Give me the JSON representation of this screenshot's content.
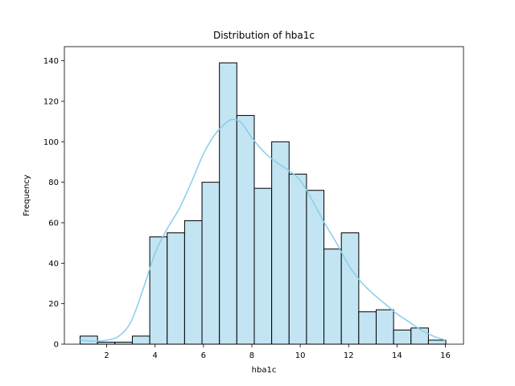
{
  "chart_data": {
    "type": "bar",
    "subtype": "histogram-with-kde",
    "title": "Distribution of hba1c",
    "xlabel": "hba1c",
    "ylabel": "Frequency",
    "xlim": [
      0.25,
      16.75
    ],
    "ylim": [
      0,
      147
    ],
    "xticks": [
      2,
      4,
      6,
      8,
      10,
      12,
      14,
      16
    ],
    "yticks": [
      0,
      20,
      40,
      60,
      80,
      100,
      120,
      140
    ],
    "grid": false,
    "bar_color": "#c3e4f2",
    "edge_color": "#000000",
    "kde_color": "#87ceeb",
    "bins": [
      {
        "x0": 0.9,
        "x1": 1.62,
        "count": 4
      },
      {
        "x0": 1.62,
        "x1": 2.34,
        "count": 1
      },
      {
        "x0": 2.34,
        "x1": 3.06,
        "count": 1
      },
      {
        "x0": 3.06,
        "x1": 3.78,
        "count": 4
      },
      {
        "x0": 3.78,
        "x1": 4.5,
        "count": 53
      },
      {
        "x0": 4.5,
        "x1": 5.22,
        "count": 55
      },
      {
        "x0": 5.22,
        "x1": 5.94,
        "count": 61
      },
      {
        "x0": 5.94,
        "x1": 6.66,
        "count": 80
      },
      {
        "x0": 6.66,
        "x1": 7.38,
        "count": 139
      },
      {
        "x0": 7.38,
        "x1": 8.1,
        "count": 113
      },
      {
        "x0": 8.1,
        "x1": 8.82,
        "count": 77
      },
      {
        "x0": 8.82,
        "x1": 9.54,
        "count": 100
      },
      {
        "x0": 9.54,
        "x1": 10.26,
        "count": 84
      },
      {
        "x0": 10.26,
        "x1": 10.98,
        "count": 76
      },
      {
        "x0": 10.98,
        "x1": 11.7,
        "count": 47
      },
      {
        "x0": 11.7,
        "x1": 12.42,
        "count": 55
      },
      {
        "x0": 12.42,
        "x1": 13.14,
        "count": 16
      },
      {
        "x0": 13.14,
        "x1": 13.86,
        "count": 17
      },
      {
        "x0": 13.86,
        "x1": 14.58,
        "count": 7
      },
      {
        "x0": 14.58,
        "x1": 15.3,
        "count": 8
      },
      {
        "x0": 15.3,
        "x1": 16.02,
        "count": 2
      }
    ],
    "kde": {
      "x": [
        0.9,
        1.5,
        2.0,
        2.5,
        3.0,
        3.5,
        4.0,
        4.5,
        5.0,
        5.5,
        6.0,
        6.5,
        7.0,
        7.3,
        7.6,
        8.0,
        8.5,
        9.0,
        9.5,
        10.0,
        10.5,
        11.0,
        11.5,
        12.0,
        12.5,
        13.0,
        13.5,
        14.0,
        14.5,
        15.0,
        15.5,
        16.0
      ],
      "y": [
        2,
        1.5,
        2,
        4,
        11,
        27,
        45,
        57,
        67,
        80,
        94,
        104,
        110,
        111,
        109,
        102,
        95,
        90,
        86,
        81,
        71,
        60,
        50,
        39,
        31,
        25,
        20,
        15,
        11,
        7,
        4,
        2
      ]
    }
  }
}
